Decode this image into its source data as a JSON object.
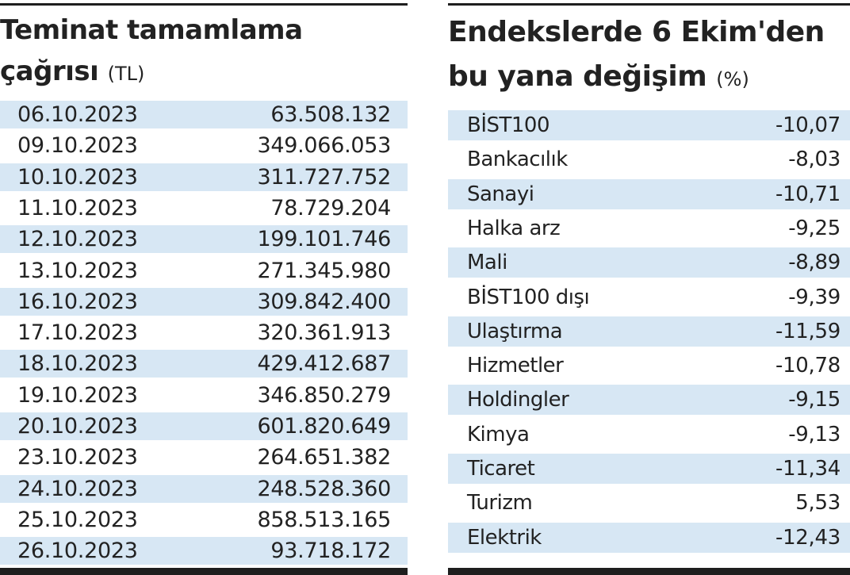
{
  "margin_call": {
    "title_line1": "Teminat tamamlama",
    "title_line2": "çağrısı",
    "unit": "(TL)",
    "rows": [
      {
        "date": "06.10.2023",
        "amount": "63.508.132"
      },
      {
        "date": "09.10.2023",
        "amount": "349.066.053"
      },
      {
        "date": "10.10.2023",
        "amount": "311.727.752"
      },
      {
        "date": "11.10.2023",
        "amount": "78.729.204"
      },
      {
        "date": "12.10.2023",
        "amount": "199.101.746"
      },
      {
        "date": "13.10.2023",
        "amount": "271.345.980"
      },
      {
        "date": "16.10.2023",
        "amount": "309.842.400"
      },
      {
        "date": "17.10.2023",
        "amount": "320.361.913"
      },
      {
        "date": "18.10.2023",
        "amount": "429.412.687"
      },
      {
        "date": "19.10.2023",
        "amount": "346.850.279"
      },
      {
        "date": "20.10.2023",
        "amount": "601.820.649"
      },
      {
        "date": "23.10.2023",
        "amount": "264.651.382"
      },
      {
        "date": "24.10.2023",
        "amount": "248.528.360"
      },
      {
        "date": "25.10.2023",
        "amount": "858.513.165"
      },
      {
        "date": "26.10.2023",
        "amount": "93.718.172"
      }
    ]
  },
  "index_changes": {
    "title_line1": "Endekslerde 6 Ekim'den",
    "title_line2": "bu yana değişim",
    "unit": "(%)",
    "rows": [
      {
        "name": "BİST100",
        "change": "-10,07"
      },
      {
        "name": "Bankacılık",
        "change": "-8,03"
      },
      {
        "name": "Sanayi",
        "change": "-10,71"
      },
      {
        "name": "Halka arz",
        "change": "-9,25"
      },
      {
        "name": "Mali",
        "change": "-8,89"
      },
      {
        "name": "BİST100 dışı",
        "change": "-9,39"
      },
      {
        "name": "Ulaştırma",
        "change": "-11,59"
      },
      {
        "name": "Hizmetler",
        "change": "-10,78"
      },
      {
        "name": "Holdingler",
        "change": "-9,15"
      },
      {
        "name": "Kimya",
        "change": "-9,13"
      },
      {
        "name": "Ticaret",
        "change": "-11,34"
      },
      {
        "name": "Turizm",
        "change": "5,53"
      },
      {
        "name": "Elektrik",
        "change": "-12,43"
      }
    ]
  },
  "colors": {
    "row_shade": "#d7e7f4",
    "rule": "#1e1e1e",
    "text": "#222222"
  }
}
